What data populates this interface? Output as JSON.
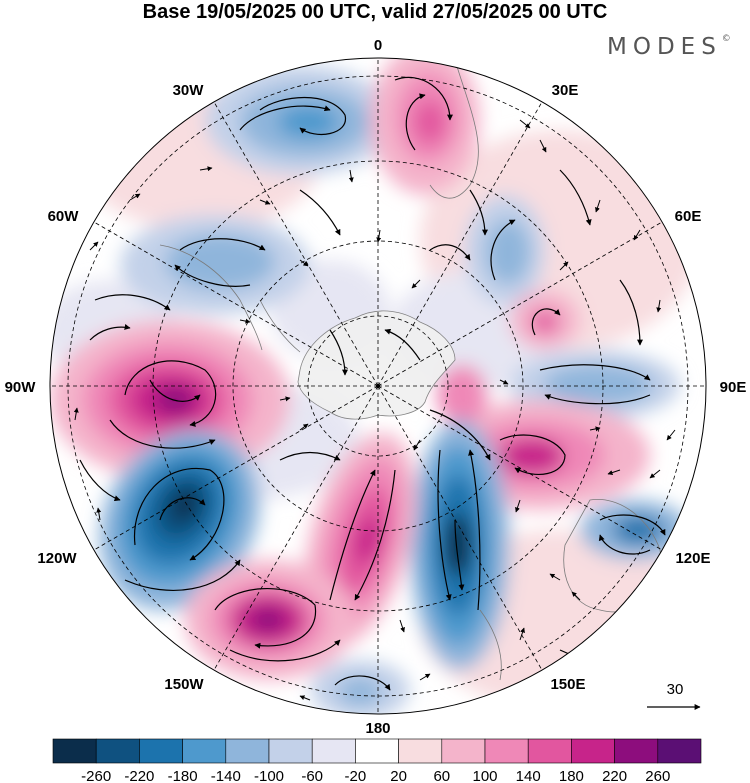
{
  "title": "Base 19/05/2025 00 UTC, valid 27/05/2025 00 UTC",
  "brand": "MODES",
  "brand_mark": "©",
  "longitude_labels": {
    "top": "0",
    "top_left": "30W",
    "top_right": "30E",
    "upper_left": "60W",
    "upper_right": "60E",
    "left": "90W",
    "right": "90E",
    "lower_left": "120W",
    "lower_right": "120E",
    "bottom_left": "150W",
    "bottom_right": "150E",
    "bottom": "180"
  },
  "reference_vector_label": "30",
  "colorbar": {
    "colors": [
      "#0b2d4b",
      "#0f5180",
      "#1c73ad",
      "#4e99cd",
      "#8fb5db",
      "#c3d1e9",
      "#e6e6f3",
      "#ffffff",
      "#f8dde0",
      "#f4b4cb",
      "#ef88b7",
      "#e2569f",
      "#c7248a",
      "#8d0d7d",
      "#5b0f74"
    ],
    "tick_labels": [
      "-260",
      "-220",
      "-180",
      "-140",
      "-100",
      "-60",
      "-20",
      "20",
      "60",
      "100",
      "140",
      "180",
      "220",
      "260"
    ]
  },
  "map_colors": {
    "land": "#f0f0f0",
    "coast": "#7a7a7a",
    "graticule": "#000000",
    "streamline": "#000000"
  }
}
